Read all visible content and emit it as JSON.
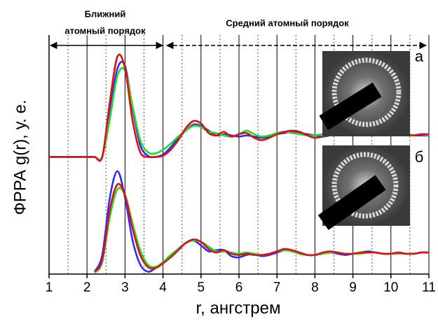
{
  "chart_data": {
    "type": "line",
    "xlabel": "r, ангстрем",
    "ylabel": "ФРРА g(r), у. е.",
    "annotations": [
      "Ближний",
      "атомный порядок",
      "Средний атомный порядок"
    ],
    "inset_labels": [
      "а",
      "б"
    ],
    "xlim": [
      1,
      11
    ],
    "ylim": [
      0,
      10
    ],
    "xticks": [
      1,
      2,
      3,
      4,
      5,
      6,
      7,
      8,
      9,
      10,
      11
    ],
    "xminor": [
      1.5,
      2.5,
      3.5,
      4.5,
      5.5,
      6.5,
      7.5,
      8.5,
      9.5,
      10.5
    ],
    "grid": true,
    "x": [
      1.0,
      1.2,
      1.4,
      1.6,
      1.8,
      2.0,
      2.2,
      2.4,
      2.6,
      2.8,
      3.0,
      3.2,
      3.4,
      3.6,
      3.8,
      4.0,
      4.2,
      4.4,
      4.6,
      4.8,
      5.0,
      5.2,
      5.4,
      5.6,
      5.8,
      6.0,
      6.2,
      6.4,
      6.6,
      6.8,
      7.0,
      7.2,
      7.4,
      7.6,
      7.8,
      8.0,
      8.2,
      8.4,
      8.6,
      8.8,
      9.0,
      9.2,
      9.4,
      9.6,
      9.8,
      10.0,
      10.2,
      10.4,
      10.6,
      10.8,
      11.0
    ],
    "series": [
      {
        "color": "#2b2bff",
        "values": [
          4.9,
          4.9,
          4.9,
          4.9,
          4.9,
          4.9,
          4.9,
          4.9,
          6.8,
          8.6,
          8.7,
          6.9,
          5.4,
          4.95,
          4.9,
          5.0,
          5.3,
          5.7,
          6.0,
          6.25,
          6.2,
          6.0,
          5.8,
          5.85,
          5.8,
          5.75,
          5.8,
          5.75,
          5.7,
          5.75,
          5.85,
          5.9,
          5.95,
          5.9,
          5.85,
          5.8,
          5.75,
          5.8,
          5.85,
          5.85,
          5.85,
          5.8,
          5.8,
          5.8,
          5.85,
          5.8,
          5.8,
          5.8,
          5.8,
          5.8,
          5.8
        ]
      },
      {
        "color": "#22dd22",
        "values": [
          4.9,
          4.9,
          4.9,
          4.9,
          4.9,
          4.9,
          4.9,
          4.9,
          6.5,
          8.3,
          8.5,
          7.0,
          5.6,
          5.1,
          5.05,
          5.2,
          5.45,
          5.75,
          6.0,
          6.2,
          6.15,
          5.95,
          5.9,
          5.8,
          5.75,
          5.85,
          6.0,
          5.85,
          5.75,
          5.8,
          5.9,
          5.95,
          5.9,
          5.85,
          5.8,
          5.8,
          5.85,
          5.9,
          5.85,
          5.8,
          5.8,
          5.85,
          5.85,
          5.8,
          5.8,
          5.85,
          5.85,
          5.8,
          5.8,
          5.85,
          5.8
        ]
      },
      {
        "color": "#e01010",
        "values": [
          4.9,
          4.9,
          4.9,
          4.9,
          4.9,
          4.9,
          4.9,
          4.9,
          7.2,
          9.1,
          8.6,
          6.4,
          5.1,
          4.9,
          4.9,
          4.95,
          5.2,
          5.6,
          6.1,
          6.4,
          6.3,
          5.9,
          5.8,
          5.95,
          5.75,
          5.85,
          5.9,
          5.7,
          5.6,
          5.7,
          5.85,
          5.95,
          6.0,
          5.95,
          5.8,
          5.7,
          5.75,
          5.85,
          5.9,
          5.9,
          5.85,
          5.8,
          5.8,
          5.85,
          5.85,
          5.8,
          5.85,
          5.85,
          5.8,
          5.85,
          5.85
        ]
      },
      {
        "color": "#2b2bff",
        "values": [
          null,
          null,
          null,
          null,
          null,
          null,
          0.1,
          0.8,
          3.2,
          4.3,
          3.2,
          1.4,
          0.4,
          0.1,
          0.25,
          0.5,
          0.75,
          1.05,
          1.3,
          1.4,
          1.2,
          0.95,
          1.0,
          1.0,
          0.75,
          0.7,
          0.8,
          0.85,
          0.75,
          0.8,
          0.9,
          1.0,
          0.95,
          0.85,
          0.8,
          0.8,
          0.85,
          0.9,
          0.85,
          0.8,
          0.85,
          0.9,
          0.95,
          0.9,
          0.85,
          0.85,
          0.9,
          0.85,
          0.85,
          0.9,
          0.9
        ]
      },
      {
        "color": "#22dd22",
        "values": [
          null,
          null,
          null,
          null,
          null,
          null,
          0.05,
          0.5,
          2.4,
          3.55,
          3.3,
          2.1,
          1.0,
          0.4,
          0.3,
          0.5,
          0.8,
          1.05,
          1.3,
          1.4,
          1.35,
          1.15,
          0.95,
          0.95,
          0.9,
          0.85,
          0.9,
          0.85,
          0.8,
          0.85,
          0.95,
          1.0,
          0.95,
          0.85,
          0.8,
          0.8,
          0.85,
          0.9,
          0.9,
          0.85,
          0.85,
          0.85,
          0.9,
          0.9,
          0.85,
          0.85,
          0.85,
          0.85,
          0.85,
          0.9,
          0.9
        ]
      },
      {
        "color": "#e01010",
        "values": [
          null,
          null,
          null,
          null,
          null,
          null,
          0.1,
          0.6,
          2.7,
          3.75,
          3.3,
          1.9,
          0.8,
          0.3,
          0.25,
          0.45,
          0.7,
          1.0,
          1.3,
          1.45,
          1.35,
          1.05,
          0.9,
          1.0,
          0.85,
          0.8,
          0.85,
          0.8,
          0.8,
          0.85,
          0.95,
          1.05,
          1.0,
          0.9,
          0.8,
          0.8,
          0.9,
          0.95,
          0.9,
          0.85,
          0.85,
          0.9,
          0.9,
          0.9,
          0.85,
          0.85,
          0.9,
          0.85,
          0.85,
          0.9,
          0.9
        ]
      }
    ]
  }
}
